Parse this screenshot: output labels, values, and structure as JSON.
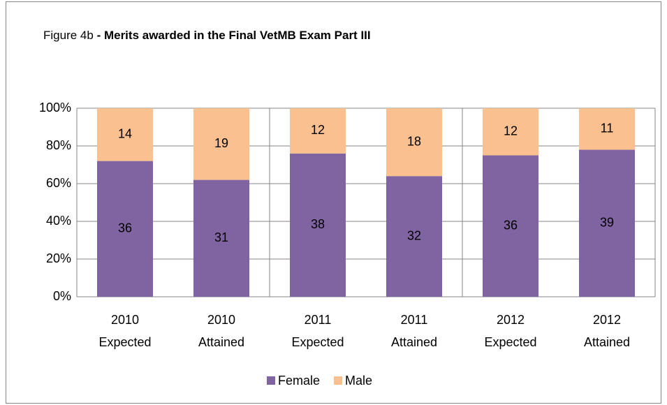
{
  "chart_data": {
    "type": "bar",
    "stacking": "percent",
    "title": {
      "prefix": "Figure 4b",
      "main": "- Merits awarded in the Final VetMB Exam Part III"
    },
    "categories": [
      [
        "2010",
        "Expected"
      ],
      [
        "2010",
        "Attained"
      ],
      [
        "2011",
        "Expected"
      ],
      [
        "2011",
        "Attained"
      ],
      [
        "2012",
        "Expected"
      ],
      [
        "2012",
        "Attained"
      ]
    ],
    "series": [
      {
        "name": "Female",
        "color": "#8064a2",
        "values": [
          36,
          31,
          38,
          32,
          36,
          39
        ]
      },
      {
        "name": "Male",
        "color": "#fac090",
        "values": [
          14,
          19,
          12,
          18,
          12,
          11
        ]
      }
    ],
    "ylim": [
      0,
      100
    ],
    "yticks": [
      {
        "value": 0,
        "label": "0%"
      },
      {
        "value": 20,
        "label": "20%"
      },
      {
        "value": 40,
        "label": "40%"
      },
      {
        "value": 60,
        "label": "60%"
      },
      {
        "value": 80,
        "label": "80%"
      },
      {
        "value": 100,
        "label": "100%"
      }
    ],
    "grid": true,
    "legend": "bottom"
  }
}
